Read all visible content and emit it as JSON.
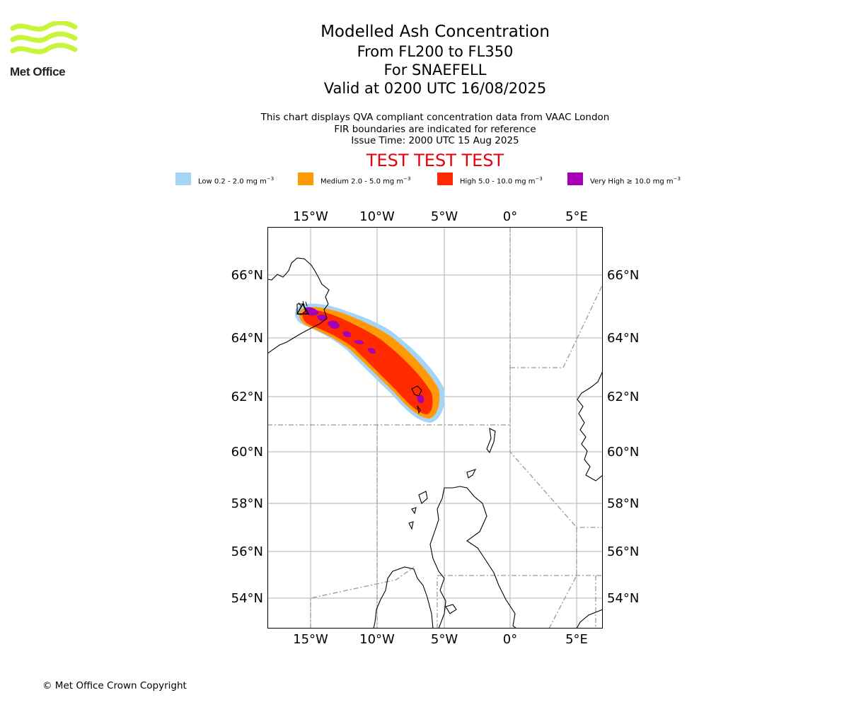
{
  "logo": {
    "text": "Met Office",
    "color": "#c8f53c"
  },
  "title": {
    "line1": "Modelled Ash Concentration",
    "line2": "From FL200 to FL350",
    "line3": "For SNAEFELL",
    "line4": "Valid at 0200 UTC 16/08/2025"
  },
  "description": {
    "line1": "This chart displays QVA compliant concentration data from VAAC London",
    "line2": "FIR boundaries are indicated for reference",
    "line3": "Issue Time: 2000 UTC 15 Aug 2025"
  },
  "test_banner": "TEST TEST TEST",
  "legend": [
    {
      "label": "Low 0.2 - 2.0 mg m",
      "unit_exp": "−3",
      "color": "#a6d4f7"
    },
    {
      "label": "Medium 2.0 - 5.0 mg m",
      "unit_exp": "−3",
      "color": "#ff9a06"
    },
    {
      "label": "High 5.0 - 10.0 mg m",
      "unit_exp": "−3",
      "color": "#ff2a00"
    },
    {
      "label": "Very High  ≥  10.0 mg m",
      "unit_exp": "−3",
      "color": "#a600b7"
    }
  ],
  "map": {
    "lon_ticks": [
      "15°W",
      "10°W",
      "5°W",
      "0°",
      "5°E"
    ],
    "lat_ticks": [
      "66°N",
      "64°N",
      "62°N",
      "60°N",
      "58°N",
      "56°N",
      "54°N"
    ],
    "lon_range": [
      -18.2,
      7
    ],
    "lat_range": [
      52.9,
      67.6
    ]
  },
  "copyright": "© Met Office Crown Copyright"
}
